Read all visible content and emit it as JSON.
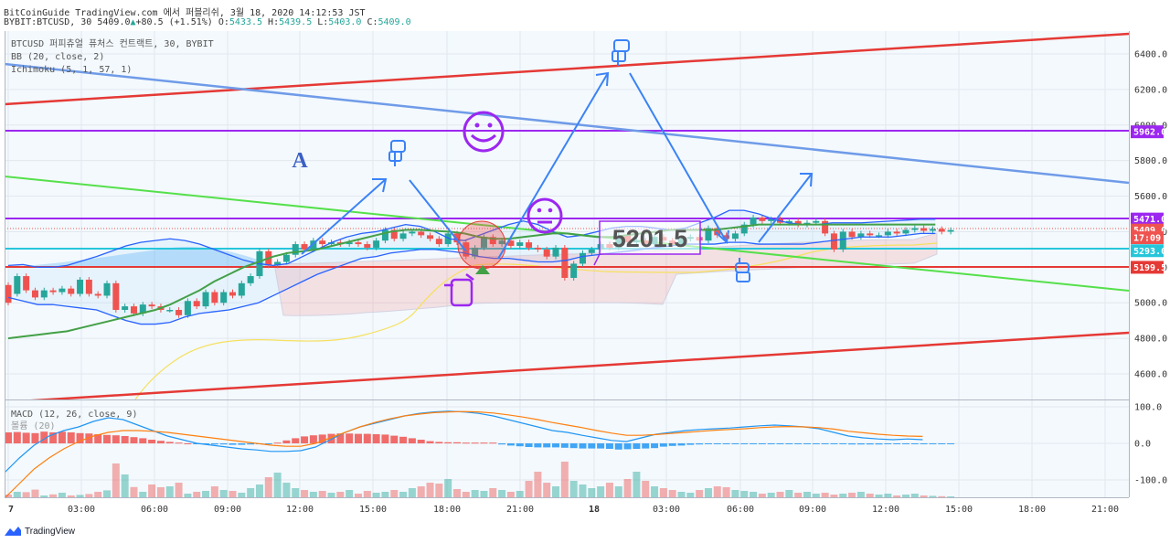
{
  "header": {
    "line1": "BitCoinGuide TradingView.com 에서 퍼블리쉬, 3월 18, 2020 14:12:53 JST",
    "symbol": "BYBIT:BTCUSD, 30",
    "last": "5409.0",
    "change_arrow": "▲",
    "change": "+80.5 (+1.51%)",
    "o_label": "O:",
    "o_value": "5433.5",
    "h_label": "H:",
    "h_value": "5439.5",
    "l_label": "L:",
    "l_value": "5403.0",
    "c_label": "C:",
    "c_value": "5409.0"
  },
  "legend": {
    "title": "BTCUSD 퍼피츄얼 퓨처스 컨트랙트, 30, BYBIT",
    "bb": "BB (20, close, 2)",
    "ichimoku": "Ichimoku (5, 1, 57, 1)",
    "macd": "MACD (12, 26, close, 9)",
    "volume_obscured": "볼륨 (20)"
  },
  "annotations": {
    "letter_a": "A",
    "price_box": "5201.5"
  },
  "footer": {
    "brand": "TradingView"
  },
  "price_labels": [
    {
      "text": "5962.0",
      "color": "#9c27f0",
      "y": 5962
    },
    {
      "text": "5471.0",
      "color": "#9c27f0",
      "y": 5471
    },
    {
      "text": "5409.0",
      "color": "#ef5350",
      "y": 5409
    },
    {
      "text": "17:09",
      "color": "#ef5350",
      "y": 5366
    },
    {
      "text": "5293.0",
      "color": "#26c6da",
      "y": 5293
    },
    {
      "text": "5199.5",
      "color": "#e53935",
      "y": 5199.5
    }
  ],
  "colors": {
    "up": "#26a69a",
    "down": "#ef5350",
    "bb": "#2962ff",
    "basis": "#43a047",
    "purple": "#9c27f0",
    "cyan": "#26c6da",
    "red_line": "#e53935",
    "blue_line": "#6f9be8",
    "green_line": "#55e04a",
    "yellow": "#f6e05e",
    "macd": "#2196f3",
    "signal": "#ff7f0e"
  },
  "chart_data": [
    {
      "type": "line",
      "title": "BTCUSD 퍼피츄얼 퓨처스 컨트랙트, 30, BYBIT",
      "y_axis_ticks": [
        "6400.0",
        "6200.0",
        "6000.0",
        "5800.0",
        "5600.0",
        "5400.0",
        "5200.0",
        "5000.0",
        "4800.0",
        "4600.0"
      ],
      "ylim": [
        4480,
        6600
      ],
      "x_axis_ticks": [
        "7",
        "03:00",
        "06:00",
        "09:00",
        "12:00",
        "15:00",
        "18:00",
        "21:00",
        "18",
        "03:00",
        "06:00",
        "09:00",
        "12:00",
        "15:00",
        "18:00",
        "21:00"
      ],
      "candles": [
        [
          5100,
          5000
        ],
        [
          5050,
          5150
        ],
        [
          5150,
          5070
        ],
        [
          5070,
          5030
        ],
        [
          5030,
          5070
        ],
        [
          5070,
          5060
        ],
        [
          5060,
          5080
        ],
        [
          5080,
          5050
        ],
        [
          5050,
          5130
        ],
        [
          5130,
          5050
        ],
        [
          5050,
          5040
        ],
        [
          5040,
          5110
        ],
        [
          5110,
          4960
        ],
        [
          4960,
          4980
        ],
        [
          4980,
          4940
        ],
        [
          4940,
          4990
        ],
        [
          4990,
          4980
        ],
        [
          4980,
          4960
        ],
        [
          4960,
          4960
        ],
        [
          4960,
          4930
        ],
        [
          4930,
          5010
        ],
        [
          5010,
          4980
        ],
        [
          4980,
          5060
        ],
        [
          5060,
          5000
        ],
        [
          5000,
          5060
        ],
        [
          5060,
          5040
        ],
        [
          5040,
          5110
        ],
        [
          5110,
          5150
        ],
        [
          5150,
          5290
        ],
        [
          5290,
          5210
        ],
        [
          5210,
          5230
        ],
        [
          5230,
          5270
        ],
        [
          5270,
          5330
        ],
        [
          5330,
          5300
        ],
        [
          5300,
          5350
        ],
        [
          5350,
          5330
        ],
        [
          5330,
          5340
        ],
        [
          5340,
          5330
        ],
        [
          5330,
          5340
        ],
        [
          5340,
          5330
        ],
        [
          5330,
          5310
        ],
        [
          5310,
          5350
        ],
        [
          5350,
          5410
        ],
        [
          5410,
          5360
        ],
        [
          5360,
          5390
        ],
        [
          5390,
          5400
        ],
        [
          5400,
          5380
        ],
        [
          5380,
          5360
        ],
        [
          5360,
          5330
        ],
        [
          5330,
          5390
        ],
        [
          5390,
          5340
        ],
        [
          5340,
          5260
        ],
        [
          5260,
          5310
        ],
        [
          5310,
          5370
        ],
        [
          5370,
          5330
        ],
        [
          5330,
          5350
        ],
        [
          5350,
          5320
        ],
        [
          5320,
          5340
        ],
        [
          5340,
          5310
        ],
        [
          5310,
          5300
        ],
        [
          5300,
          5260
        ],
        [
          5260,
          5310
        ],
        [
          5310,
          5140
        ],
        [
          5140,
          5220
        ],
        [
          5220,
          5280
        ],
        [
          5280,
          5300
        ],
        [
          5300,
          5330
        ],
        [
          5330,
          5310
        ],
        [
          5310,
          5380
        ],
        [
          5380,
          5340
        ],
        [
          5340,
          5350
        ],
        [
          5350,
          5330
        ],
        [
          5330,
          5370
        ],
        [
          5370,
          5350
        ],
        [
          5350,
          5330
        ],
        [
          5330,
          5360
        ],
        [
          5360,
          5370
        ],
        [
          5370,
          5350
        ],
        [
          5350,
          5420
        ],
        [
          5420,
          5380
        ],
        [
          5380,
          5360
        ],
        [
          5360,
          5390
        ],
        [
          5390,
          5440
        ],
        [
          5440,
          5480
        ],
        [
          5480,
          5460
        ],
        [
          5460,
          5470
        ],
        [
          5470,
          5450
        ],
        [
          5450,
          5460
        ],
        [
          5460,
          5440
        ],
        [
          5440,
          5450
        ],
        [
          5450,
          5460
        ],
        [
          5460,
          5390
        ],
        [
          5390,
          5300
        ],
        [
          5300,
          5400
        ],
        [
          5400,
          5370
        ],
        [
          5370,
          5390
        ],
        [
          5390,
          5380
        ],
        [
          5380,
          5380
        ],
        [
          5380,
          5400
        ],
        [
          5400,
          5390
        ],
        [
          5390,
          5410
        ],
        [
          5410,
          5420
        ],
        [
          5420,
          5405
        ],
        [
          5405,
          5415
        ],
        [
          5415,
          5400
        ],
        [
          5400,
          5409
        ]
      ],
      "series": [
        {
          "name": "BB upper",
          "values": [
            5210,
            5215,
            5200,
            5200,
            5210,
            5235,
            5260,
            5290,
            5320,
            5340,
            5350,
            5360,
            5350,
            5330,
            5300,
            5270,
            5240,
            5220,
            5210,
            5220,
            5260,
            5300,
            5340,
            5370,
            5390,
            5400,
            5420,
            5440,
            5430,
            5400,
            5360,
            5350,
            5380,
            5410,
            5440,
            5460,
            5440,
            5400,
            5370,
            5380,
            5400,
            5420,
            5430,
            5430,
            5420,
            5410,
            5420,
            5450,
            5480,
            5520,
            5520,
            5500,
            5470,
            5450,
            5440,
            5440,
            5450,
            5450,
            5450,
            5455,
            5460,
            5465,
            5470,
            5470
          ]
        },
        {
          "name": "BB lower",
          "values": [
            5030,
            5010,
            4990,
            4990,
            4980,
            4970,
            4960,
            4930,
            4900,
            4880,
            4880,
            4890,
            4920,
            4940,
            4950,
            4960,
            4980,
            5000,
            5040,
            5080,
            5120,
            5160,
            5190,
            5220,
            5250,
            5260,
            5280,
            5290,
            5300,
            5300,
            5290,
            5280,
            5260,
            5250,
            5250,
            5240,
            5230,
            5230,
            5240,
            5260,
            5270,
            5280,
            5290,
            5300,
            5310,
            5320,
            5330,
            5330,
            5330,
            5340,
            5340,
            5330,
            5330,
            5330,
            5330,
            5340,
            5350,
            5360,
            5370,
            5370,
            5370,
            5380,
            5390,
            5390
          ]
        },
        {
          "name": "Basis",
          "values": [
            4800,
            4810,
            4820,
            4830,
            4840,
            4860,
            4880,
            4900,
            4920,
            4940,
            4960,
            4990,
            5030,
            5070,
            5120,
            5160,
            5200,
            5230,
            5260,
            5280,
            5290,
            5300,
            5320,
            5340,
            5360,
            5380,
            5400,
            5410,
            5410,
            5405,
            5400,
            5390,
            5370,
            5360,
            5360,
            5370,
            5380,
            5390,
            5390,
            5380,
            5370,
            5370,
            5380,
            5390,
            5400,
            5410,
            5410,
            5410,
            5410,
            5420,
            5430,
            5440,
            5440,
            5440,
            5440,
            5440,
            5440,
            5440,
            5440,
            5440,
            5440,
            5440,
            5440,
            5440
          ]
        }
      ]
    },
    {
      "type": "bar",
      "title": "MACD (12, 26, close, 9)",
      "y_axis_ticks": [
        "100.0",
        "0.0",
        "-100.0"
      ],
      "ylim": [
        -150,
        110
      ],
      "series": [
        {
          "name": "histogram",
          "values": [
            30,
            31,
            29,
            28,
            32,
            30,
            32,
            30,
            28,
            27,
            25,
            23,
            22,
            20,
            17,
            14,
            10,
            7,
            4,
            2,
            0,
            -1,
            -2,
            -3,
            -3,
            -4,
            -4,
            -3,
            -2,
            -1,
            2,
            8,
            14,
            19,
            22,
            24,
            26,
            27,
            27,
            26,
            26,
            25,
            24,
            21,
            18,
            14,
            10,
            6,
            4,
            3,
            3,
            2,
            2,
            2,
            2,
            -3,
            -6,
            -8,
            -10,
            -11,
            -11,
            -11,
            -12,
            -13,
            -14,
            -14,
            -14,
            -15,
            -17,
            -16,
            -15,
            -14,
            -13,
            -9,
            -7,
            -6,
            -4,
            -3,
            -2,
            -2,
            -1,
            -1,
            -1,
            -1,
            -1,
            -1,
            -1,
            -1,
            -1,
            -1,
            -2,
            -2,
            -2,
            -2,
            -3,
            -3,
            -3,
            -3,
            -2,
            -2,
            -2,
            -2,
            -2,
            -2,
            -1,
            -1
          ]
        },
        {
          "name": "MACD",
          "values": [
            -80,
            -40,
            -5,
            20,
            35,
            45,
            60,
            70,
            65,
            50,
            35,
            20,
            10,
            0,
            -5,
            -10,
            -15,
            -18,
            -22,
            -22,
            -20,
            -10,
            10,
            30,
            45,
            55,
            65,
            75,
            82,
            86,
            88,
            86,
            82,
            75,
            65,
            55,
            45,
            35,
            30,
            22,
            15,
            8,
            5,
            15,
            25,
            30,
            35,
            38,
            40,
            42,
            45,
            48,
            50,
            48,
            45,
            40,
            30,
            20,
            15,
            12,
            10,
            12,
            10
          ]
        },
        {
          "name": "Signal",
          "values": [
            -150,
            -110,
            -70,
            -40,
            -15,
            5,
            20,
            30,
            35,
            35,
            33,
            30,
            25,
            20,
            15,
            10,
            5,
            0,
            -5,
            -8,
            -8,
            0,
            15,
            30,
            45,
            57,
            67,
            75,
            80,
            84,
            86,
            87,
            86,
            83,
            78,
            72,
            65,
            57,
            50,
            43,
            35,
            28,
            22,
            22,
            24,
            27,
            30,
            33,
            36,
            38,
            40,
            43,
            45,
            46,
            45,
            43,
            39,
            33,
            29,
            25,
            22,
            20,
            19
          ]
        }
      ]
    },
    {
      "type": "bar",
      "title": "볼륨 (20)",
      "values": [
        150,
        300,
        280,
        420,
        100,
        160,
        250,
        100,
        130,
        180,
        300,
        380,
        1850,
        1250,
        560,
        300,
        700,
        550,
        600,
        800,
        200,
        300,
        350,
        600,
        400,
        350,
        250,
        500,
        700,
        1100,
        1350,
        800,
        500,
        400,
        300,
        350,
        250,
        300,
        400,
        200,
        350,
        250,
        300,
        400,
        300,
        500,
        600,
        800,
        750,
        1000,
        450,
        300,
        400,
        350,
        500,
        400,
        300,
        350,
        900,
        1400,
        800,
        600,
        1950,
        900,
        700,
        500,
        600,
        800,
        600,
        1000,
        1400,
        900,
        600,
        500,
        400,
        300,
        250,
        400,
        500,
        600,
        550,
        400,
        350,
        300,
        200,
        250,
        300,
        400,
        250,
        300,
        200,
        250,
        150,
        200,
        250,
        300,
        200,
        150,
        200,
        100,
        150,
        200,
        100,
        80,
        60,
        50
      ]
    }
  ]
}
